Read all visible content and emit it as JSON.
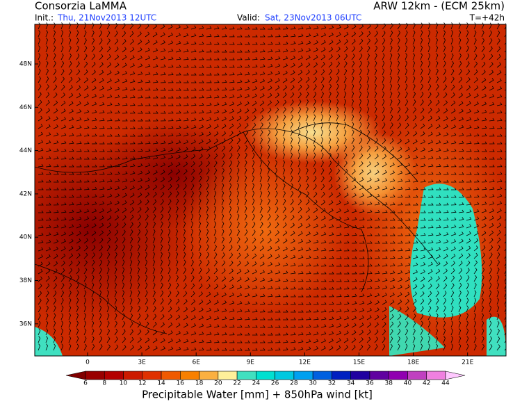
{
  "header": {
    "producer": "Consorzia LaMMA",
    "model": "ARW 12km - (ECM 25km)",
    "init_label": "Init.:",
    "init": "Thu, 21Nov2013 12UTC",
    "valid_label": "Valid:",
    "valid": "Sat, 23Nov2013 06UTC",
    "lead": "T=+42h"
  },
  "map": {
    "lat_labels": [
      "48N",
      "46N",
      "44N",
      "42N",
      "40N",
      "38N",
      "36N"
    ],
    "lon_labels": [
      "0",
      "3E",
      "6E",
      "9E",
      "12E",
      "15E",
      "18E",
      "21E"
    ]
  },
  "colorbar": {
    "title": "Precipitable Water [mm] + 850hPa wind [kt]",
    "labels": [
      6,
      8,
      10,
      12,
      14,
      16,
      18,
      20,
      22,
      24,
      26,
      28,
      30,
      32,
      34,
      36,
      38,
      40,
      42,
      44
    ],
    "colors": [
      "#800000",
      "#990000",
      "#b30000",
      "#cc1a00",
      "#e03000",
      "#f05a00",
      "#f88000",
      "#fbb040",
      "#fff09a",
      "#40e0c0",
      "#00e0d0",
      "#00c8e0",
      "#00a0f0",
      "#0060e0",
      "#0020c0",
      "#2000a0",
      "#6000a0",
      "#9000b0",
      "#c040c0",
      "#f080e0",
      "#ffc8ff"
    ]
  }
}
